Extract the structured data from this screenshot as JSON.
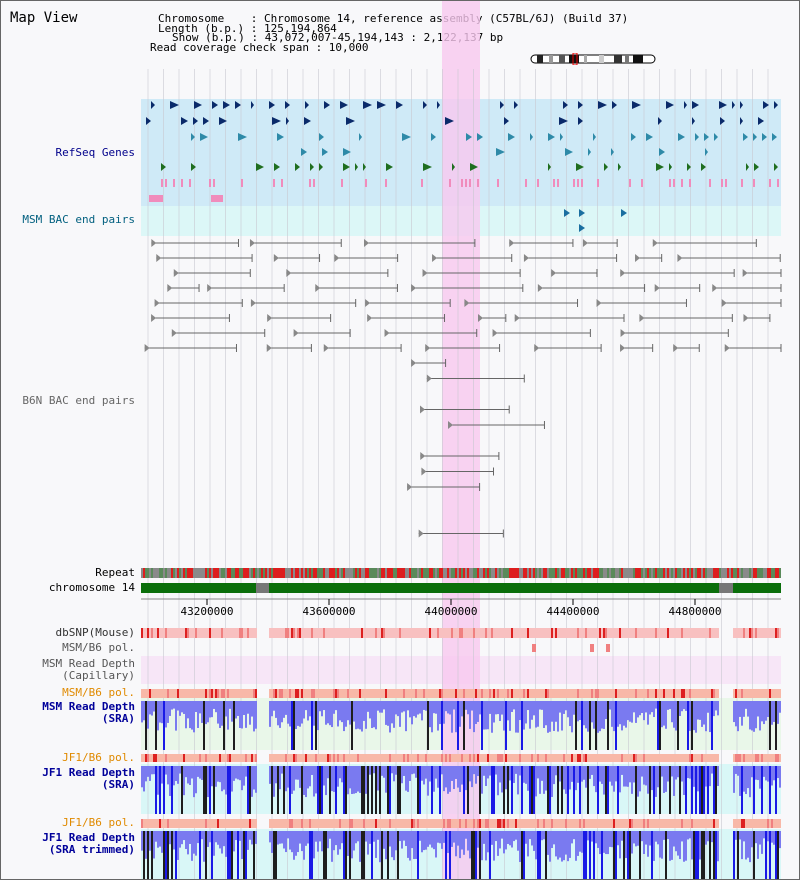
{
  "title": "Map View",
  "header": {
    "chrom_label": "Chromosome    : Chromosome 14, reference assembly (C57BL/6J) (Build 37)",
    "length_label": "Length (b.p.) : 125,194,864",
    "show_label": "Show (b.p.) : 43,072,007-45,194,143 : 2,122,137 bp",
    "coverage_label": "Read coverage check span : 10,000"
  },
  "tracks": {
    "refseq": "RefSeq Genes",
    "msm_bac": "MSM BAC end pairs",
    "b6n_bac": "B6N BAC end pairs",
    "repeat": "Repeat",
    "chromosome": "chromosome 14",
    "dbsnp": "dbSNP(Mouse)",
    "msm_b6_pol_1": "MSM/B6 pol.",
    "msm_depth_cap": "MSM Read Depth\n(Capillary)",
    "msm_b6_pol_2": "MSM/B6 pol.",
    "msm_depth_sra": "MSM Read Depth\n(SRA)",
    "jf1_b6_pol_1": "JF1/B6 pol.",
    "jf1_depth_sra": "JF1 Read Depth\n(SRA)",
    "jf1_b6_pol_2": "JF1/B6 pol.",
    "jf1_depth_trim": "JF1 Read Depth\n(SRA trimmed)"
  },
  "axis": {
    "ticks": [
      "43200000",
      "43600000",
      "44000000",
      "44400000",
      "44800000"
    ]
  },
  "colors": {
    "refseq_bg": "#cfeaf7",
    "msm_bac_bg": "#dcf7f7",
    "highlight": "#f7c8ef",
    "chrom_bar": "#0a6e0a",
    "depth_blue": "#1a1ae6",
    "depth_black": "#1e1e1e"
  }
}
